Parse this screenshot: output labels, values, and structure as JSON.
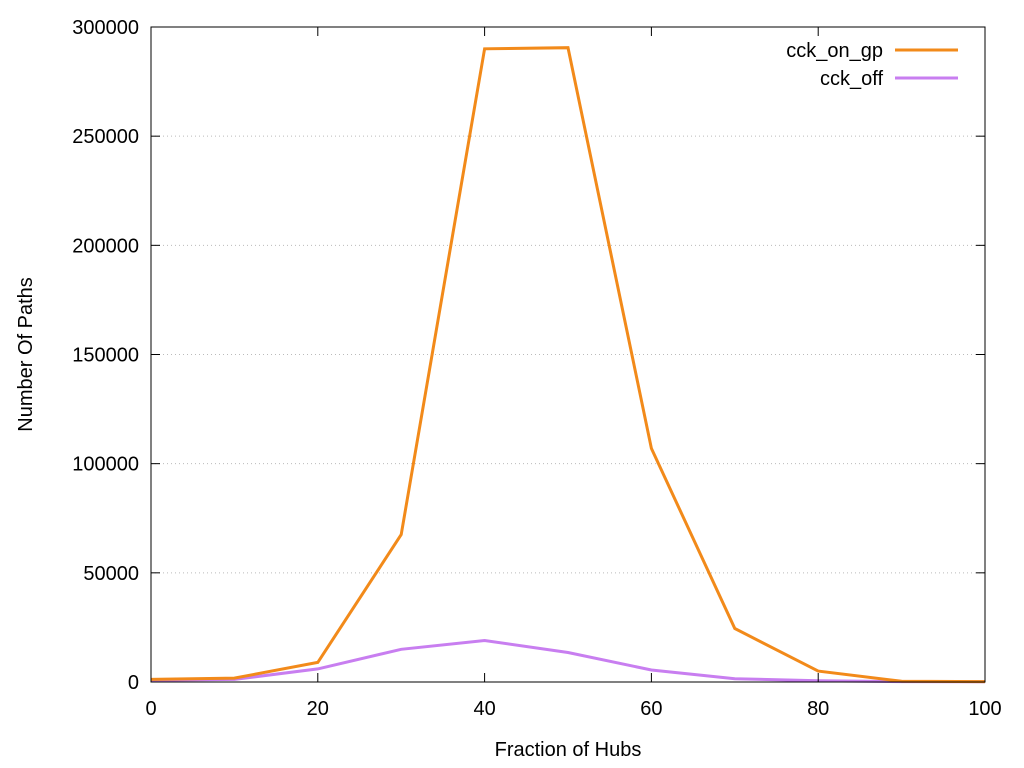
{
  "chart_data": {
    "type": "line",
    "title": "",
    "xlabel": "Fraction of Hubs",
    "ylabel": "Number Of Paths",
    "xlim": [
      0,
      100
    ],
    "ylim": [
      0,
      300000
    ],
    "x_ticks": [
      0,
      20,
      40,
      60,
      80,
      100
    ],
    "y_ticks": [
      0,
      50000,
      100000,
      150000,
      200000,
      250000,
      300000
    ],
    "grid": "horizontal dotted",
    "legend_position": "top-right",
    "x": [
      0,
      10,
      20,
      30,
      40,
      50,
      60,
      70,
      80,
      90,
      100
    ],
    "series": [
      {
        "name": "cck_on_gp",
        "color": "#f28a1a",
        "values": [
          1200,
          1800,
          9000,
          67500,
          290000,
          290500,
          107000,
          24500,
          5000,
          300,
          200
        ]
      },
      {
        "name": "cck_off",
        "color": "#c87ef0",
        "values": [
          800,
          1200,
          6000,
          15000,
          19000,
          13500,
          5500,
          1500,
          600,
          200,
          100
        ]
      }
    ]
  }
}
